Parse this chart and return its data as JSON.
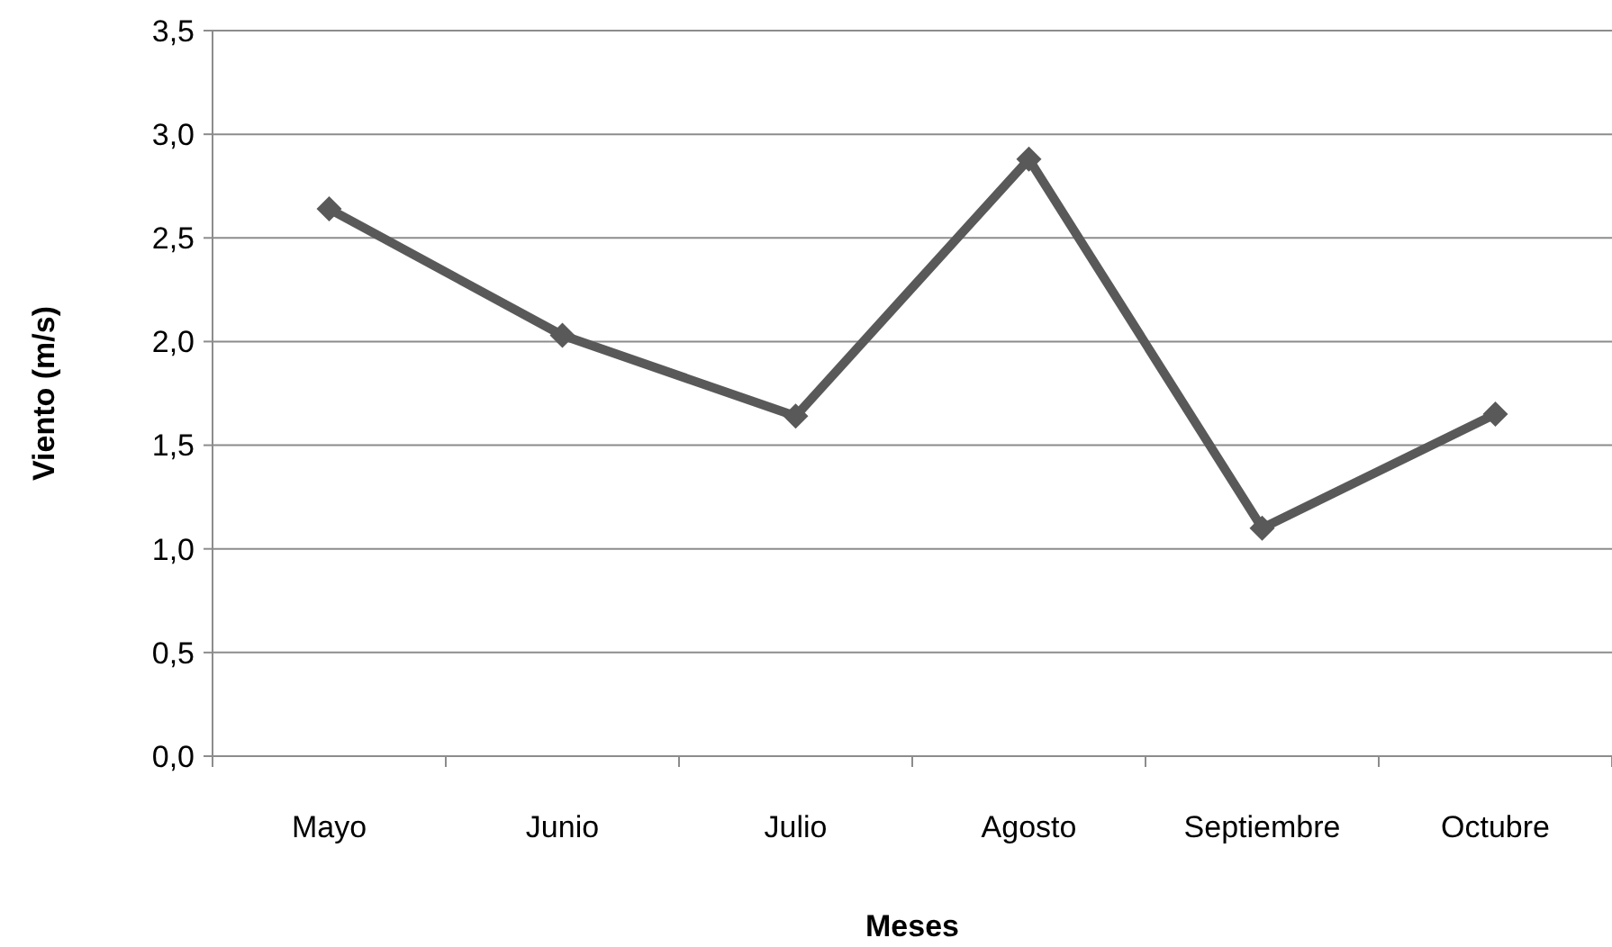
{
  "chart_data": {
    "type": "line",
    "xlabel": "Meses",
    "ylabel": "Viento (m/s)",
    "categories": [
      "Mayo",
      "Junio",
      "Julio",
      "Agosto",
      "Septiembre",
      "Octubre"
    ],
    "series": [
      {
        "color": "#595959",
        "values": [
          2.64,
          2.03,
          1.64,
          2.88,
          1.1,
          1.65
        ]
      }
    ],
    "ylim": [
      0,
      3.5
    ],
    "yticks": [
      {
        "value": 0,
        "label": "0,0"
      },
      {
        "value": 0.5,
        "label": "0,5"
      },
      {
        "value": 1,
        "label": "1,0"
      },
      {
        "value": 1.5,
        "label": "1,5"
      },
      {
        "value": 2,
        "label": "2,0"
      },
      {
        "value": 2.5,
        "label": "2,5"
      },
      {
        "value": 3,
        "label": "3,0"
      },
      {
        "value": 3.5,
        "label": "3,5"
      }
    ],
    "grid": "y",
    "marker": "diamond",
    "line_style": "solid"
  }
}
